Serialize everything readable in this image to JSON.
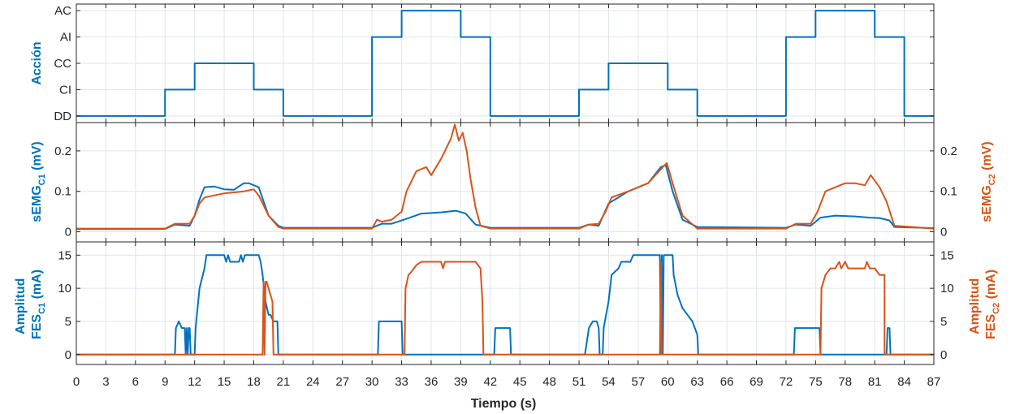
{
  "colors": {
    "c1": "#0072BD",
    "c2": "#D95319",
    "axis": "#262626",
    "grid": "#dfe6ee"
  },
  "chart_data": [
    {
      "type": "line",
      "id": "accion",
      "ylabel": "Acción",
      "y_categories": [
        "DD",
        "CI",
        "CC",
        "AI",
        "AC"
      ],
      "xlim": [
        0,
        87
      ],
      "grid": true,
      "series": [
        {
          "color": "c1",
          "step": true,
          "x": [
            0,
            9,
            12,
            18,
            21,
            30,
            33,
            39,
            42,
            51,
            54,
            60,
            63,
            72,
            75,
            81,
            84,
            87
          ],
          "values": [
            "DD",
            "CI",
            "CC",
            "CI",
            "DD",
            "AI",
            "AC",
            "AI",
            "DD",
            "CI",
            "CC",
            "CI",
            "DD",
            "AI",
            "AC",
            "AI",
            "DD",
            "DD"
          ]
        }
      ]
    },
    {
      "type": "line",
      "id": "semg",
      "ylabel_left": "sEMG",
      "ylabel_left_sub": "C1",
      "ylabel_left_unit": " (mV)",
      "ylabel_right": "sEMG",
      "ylabel_right_sub": "C2",
      "ylabel_right_unit": " (mV)",
      "xlim": [
        0,
        87
      ],
      "ylim": [
        -0.025,
        0.27
      ],
      "yticks": [
        0,
        0.1,
        0.2
      ],
      "ytick_labels": [
        "0",
        "0.1",
        "0.2"
      ],
      "grid": true,
      "series": [
        {
          "color": "c1",
          "axis": "left",
          "x": [
            0,
            9,
            10,
            11.5,
            12,
            12.5,
            13,
            14,
            15,
            16,
            17,
            17.5,
            18.5,
            19.5,
            20.5,
            21,
            30,
            31,
            32,
            33,
            35,
            37,
            38.5,
            39.5,
            40.5,
            42,
            51,
            52,
            53,
            54,
            56,
            58,
            59.3,
            59.8,
            60.5,
            61.5,
            63,
            72,
            73,
            74.5,
            75.5,
            77,
            79,
            80.5,
            81.5,
            82.5,
            83,
            87
          ],
          "values": [
            0.007,
            0.007,
            0.018,
            0.015,
            0.04,
            0.08,
            0.11,
            0.112,
            0.105,
            0.104,
            0.12,
            0.12,
            0.11,
            0.04,
            0.015,
            0.01,
            0.01,
            0.02,
            0.02,
            0.028,
            0.045,
            0.048,
            0.052,
            0.045,
            0.018,
            0.01,
            0.01,
            0.018,
            0.015,
            0.07,
            0.1,
            0.12,
            0.16,
            0.165,
            0.1,
            0.03,
            0.012,
            0.01,
            0.018,
            0.015,
            0.035,
            0.04,
            0.038,
            0.035,
            0.034,
            0.028,
            0.012,
            0.009
          ]
        },
        {
          "color": "c2",
          "axis": "right",
          "x": [
            0,
            9,
            10,
            11.5,
            12,
            12.5,
            13,
            15,
            17,
            18,
            18.5,
            19.5,
            20.5,
            21,
            30,
            30.5,
            31,
            32,
            33,
            33.5,
            34.5,
            35.5,
            36,
            37,
            38,
            38.4,
            38.8,
            39.2,
            39.6,
            40,
            40.5,
            41,
            42,
            51,
            52,
            53,
            53.7,
            54.3,
            56,
            58,
            59.5,
            59.9,
            60.5,
            61.5,
            63,
            72,
            73,
            74.5,
            75.2,
            76,
            78,
            79,
            80,
            80.6,
            81.5,
            82.2,
            83,
            87
          ],
          "values": [
            0.008,
            0.008,
            0.02,
            0.02,
            0.04,
            0.07,
            0.085,
            0.095,
            0.1,
            0.105,
            0.09,
            0.04,
            0.012,
            0.008,
            0.008,
            0.03,
            0.025,
            0.03,
            0.05,
            0.1,
            0.15,
            0.16,
            0.14,
            0.18,
            0.23,
            0.265,
            0.225,
            0.245,
            0.2,
            0.13,
            0.06,
            0.015,
            0.008,
            0.008,
            0.018,
            0.02,
            0.05,
            0.085,
            0.1,
            0.12,
            0.16,
            0.17,
            0.12,
            0.04,
            0.008,
            0.008,
            0.02,
            0.02,
            0.05,
            0.1,
            0.12,
            0.12,
            0.115,
            0.14,
            0.11,
            0.075,
            0.015,
            0.008
          ]
        }
      ]
    },
    {
      "type": "line",
      "id": "fes",
      "ylabel_left_line1": "Amplitud",
      "ylabel_left": "FES",
      "ylabel_left_sub": "C1",
      "ylabel_left_unit": " (mA)",
      "ylabel_right_line1": "Amplitud",
      "ylabel_right": "FES",
      "ylabel_right_sub": "C2",
      "ylabel_right_unit": " (mA)",
      "xlim": [
        0,
        87
      ],
      "ylim": [
        -1.5,
        17
      ],
      "yticks": [
        0,
        5,
        10,
        15
      ],
      "ytick_labels": [
        "0",
        "5",
        "10",
        "15"
      ],
      "xlabel": "Tiempo (s)",
      "xticks": [
        0,
        3,
        6,
        9,
        12,
        15,
        18,
        21,
        24,
        27,
        30,
        33,
        36,
        39,
        42,
        45,
        48,
        51,
        54,
        57,
        60,
        63,
        66,
        69,
        72,
        75,
        78,
        81,
        84,
        87
      ],
      "grid": true,
      "series": [
        {
          "color": "c1",
          "axis": "left",
          "x": [
            0,
            10,
            10.1,
            10.4,
            10.7,
            11,
            11.1,
            11.2,
            11.3,
            11.4,
            11.5,
            11.6,
            11.7,
            12,
            12.1,
            12.5,
            13,
            13.2,
            15,
            15.2,
            15.4,
            15.6,
            16.5,
            16.7,
            16.9,
            17.1,
            18.5,
            18.7,
            18.9,
            19.2,
            19.5,
            19.7,
            20,
            20.4,
            20.5,
            30.6,
            30.7,
            33,
            33.1,
            42.4,
            42.5,
            44,
            44.1,
            51.5,
            51.6,
            52,
            52.4,
            52.8,
            53,
            53.1,
            53.4,
            53.5,
            54,
            54.3,
            55,
            55.3,
            56.2,
            56.5,
            59.2,
            59.3,
            59.4,
            59.5,
            59.6,
            60.5,
            60.6,
            61,
            61.5,
            62,
            62.5,
            63,
            63.1,
            72.8,
            72.9,
            75.4,
            75.5,
            82.2,
            82.3,
            82.5,
            82.6,
            87
          ],
          "values": [
            0,
            0,
            4,
            5,
            4,
            4,
            0,
            4,
            0,
            4,
            4,
            0,
            0,
            0,
            4,
            10,
            13,
            15,
            15,
            14,
            15,
            14,
            14,
            15,
            14,
            15,
            15,
            14,
            12,
            8,
            6,
            6,
            5,
            5,
            0,
            0,
            5,
            5,
            0,
            0,
            4,
            4,
            0,
            0,
            0,
            4,
            5,
            5,
            4,
            0,
            0,
            4,
            8,
            12,
            13,
            14,
            14,
            15,
            15,
            0,
            15,
            0,
            15,
            15,
            12,
            9,
            7,
            6,
            5,
            3,
            0,
            0,
            4,
            4,
            0,
            0,
            4,
            4,
            0,
            0
          ]
        },
        {
          "color": "c2",
          "axis": "right",
          "x": [
            0,
            18.9,
            19,
            19.1,
            19.2,
            19.3,
            19.5,
            19.7,
            19.9,
            20,
            33.3,
            33.4,
            33.7,
            34,
            34.5,
            35,
            36,
            37,
            37.2,
            37.4,
            37.6,
            38,
            40,
            40.5,
            41,
            41.2,
            41.3,
            59.2,
            59.3,
            59.4,
            75.5,
            75.6,
            76,
            76.5,
            77,
            77.4,
            77.6,
            78,
            78.3,
            79,
            80,
            80.2,
            80.5,
            81,
            81.5,
            82,
            82,
            87
          ],
          "values": [
            0,
            0,
            11,
            0,
            11,
            11,
            10,
            9,
            8,
            0,
            0,
            10,
            12,
            12.5,
            13.5,
            14,
            14,
            14,
            13,
            14,
            14,
            14,
            14,
            14,
            13,
            8,
            0,
            0,
            14,
            0,
            0,
            10,
            12,
            13,
            13,
            14,
            13,
            14,
            13,
            13,
            13,
            14,
            13,
            13,
            12,
            12,
            0,
            0
          ]
        }
      ]
    }
  ]
}
